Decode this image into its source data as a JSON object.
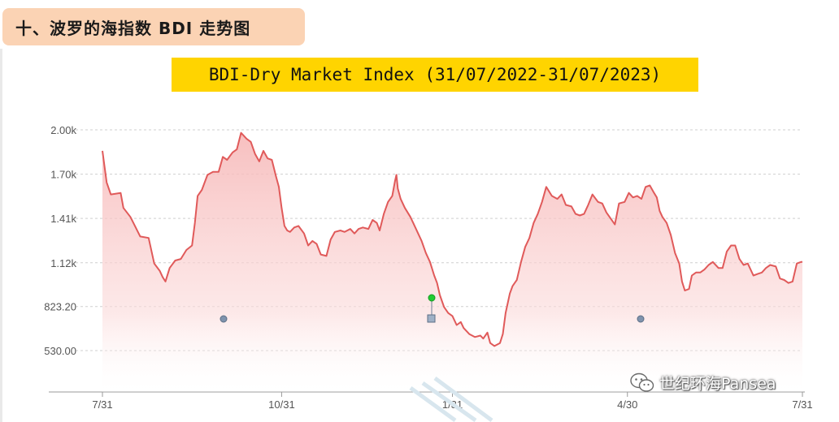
{
  "section": {
    "title": "十、波罗的海指数 BDI 走势图"
  },
  "chart_data": {
    "type": "area",
    "title": "BDI-Dry Market Index (31/07/2022-31/07/2023)",
    "xlabel": "",
    "ylabel": "",
    "x_ticks": [
      "7/31",
      "10/31",
      "1/31",
      "4/30",
      "7/31"
    ],
    "y_ticks": [
      "2.00k",
      "1.70k",
      "1.41k",
      "1.12k",
      "823.20",
      "530.00"
    ],
    "ylim": [
      530,
      2000
    ],
    "grid": true,
    "legend": "none",
    "line_color": "#e05a5a",
    "fill_color": "#f9c4c4",
    "series": [
      {
        "values": [
          [
            0,
            1860
          ],
          [
            3,
            1650
          ],
          [
            6,
            1570
          ],
          [
            13,
            1580
          ],
          [
            15,
            1480
          ],
          [
            20,
            1420
          ],
          [
            27,
            1290
          ],
          [
            33,
            1280
          ],
          [
            37,
            1110
          ],
          [
            41,
            1060
          ],
          [
            43,
            1020
          ],
          [
            45,
            990
          ],
          [
            48,
            1080
          ],
          [
            52,
            1130
          ],
          [
            56,
            1140
          ],
          [
            60,
            1200
          ],
          [
            64,
            1230
          ],
          [
            66,
            1380
          ],
          [
            68,
            1560
          ],
          [
            71,
            1600
          ],
          [
            75,
            1700
          ],
          [
            79,
            1720
          ],
          [
            83,
            1720
          ],
          [
            86,
            1820
          ],
          [
            89,
            1800
          ],
          [
            93,
            1850
          ],
          [
            96,
            1870
          ],
          [
            99,
            1980
          ],
          [
            103,
            1940
          ],
          [
            106,
            1920
          ],
          [
            109,
            1840
          ],
          [
            112,
            1790
          ],
          [
            115,
            1860
          ],
          [
            118,
            1810
          ],
          [
            121,
            1800
          ],
          [
            124,
            1690
          ],
          [
            126,
            1620
          ],
          [
            128,
            1480
          ],
          [
            130,
            1360
          ],
          [
            132,
            1330
          ],
          [
            134,
            1320
          ],
          [
            137,
            1350
          ],
          [
            140,
            1360
          ],
          [
            144,
            1310
          ],
          [
            147,
            1230
          ],
          [
            150,
            1260
          ],
          [
            153,
            1240
          ],
          [
            156,
            1170
          ],
          [
            160,
            1160
          ],
          [
            163,
            1270
          ],
          [
            166,
            1320
          ],
          [
            170,
            1330
          ],
          [
            173,
            1320
          ],
          [
            177,
            1340
          ],
          [
            180,
            1310
          ],
          [
            183,
            1340
          ],
          [
            186,
            1350
          ],
          [
            190,
            1340
          ],
          [
            193,
            1400
          ],
          [
            196,
            1380
          ],
          [
            198,
            1330
          ],
          [
            201,
            1440
          ],
          [
            204,
            1520
          ],
          [
            207,
            1560
          ],
          [
            209,
            1660
          ],
          [
            210,
            1700
          ],
          [
            211,
            1610
          ],
          [
            213,
            1540
          ],
          [
            216,
            1480
          ],
          [
            220,
            1420
          ],
          [
            224,
            1340
          ],
          [
            228,
            1260
          ],
          [
            231,
            1180
          ],
          [
            234,
            1120
          ],
          [
            237,
            1030
          ],
          [
            239,
            980
          ],
          [
            241,
            900
          ],
          [
            244,
            820
          ],
          [
            247,
            780
          ],
          [
            250,
            760
          ],
          [
            253,
            700
          ],
          [
            256,
            720
          ],
          [
            258,
            680
          ],
          [
            262,
            640
          ],
          [
            266,
            620
          ],
          [
            270,
            630
          ],
          [
            272,
            610
          ],
          [
            275,
            650
          ],
          [
            277,
            580
          ],
          [
            280,
            560
          ],
          [
            284,
            580
          ],
          [
            286,
            640
          ],
          [
            288,
            780
          ],
          [
            291,
            910
          ],
          [
            293,
            960
          ],
          [
            296,
            1000
          ],
          [
            299,
            1120
          ],
          [
            302,
            1220
          ],
          [
            305,
            1280
          ],
          [
            308,
            1380
          ],
          [
            311,
            1440
          ],
          [
            314,
            1520
          ],
          [
            317,
            1620
          ],
          [
            321,
            1560
          ],
          [
            325,
            1540
          ],
          [
            328,
            1570
          ],
          [
            331,
            1500
          ],
          [
            335,
            1490
          ],
          [
            338,
            1440
          ],
          [
            341,
            1430
          ],
          [
            344,
            1440
          ],
          [
            347,
            1500
          ],
          [
            350,
            1570
          ],
          [
            354,
            1520
          ],
          [
            357,
            1510
          ],
          [
            360,
            1450
          ],
          [
            363,
            1410
          ],
          [
            366,
            1370
          ],
          [
            369,
            1510
          ],
          [
            373,
            1520
          ],
          [
            376,
            1580
          ],
          [
            379,
            1550
          ],
          [
            382,
            1560
          ],
          [
            385,
            1540
          ],
          [
            388,
            1620
          ],
          [
            391,
            1630
          ],
          [
            394,
            1580
          ],
          [
            396,
            1550
          ],
          [
            398,
            1460
          ],
          [
            400,
            1420
          ],
          [
            403,
            1380
          ],
          [
            406,
            1300
          ],
          [
            409,
            1180
          ],
          [
            412,
            1110
          ],
          [
            414,
            990
          ],
          [
            416,
            930
          ],
          [
            419,
            940
          ],
          [
            421,
            1030
          ],
          [
            424,
            1050
          ],
          [
            427,
            1050
          ],
          [
            430,
            1070
          ],
          [
            433,
            1100
          ],
          [
            436,
            1120
          ],
          [
            440,
            1080
          ],
          [
            443,
            1080
          ],
          [
            446,
            1190
          ],
          [
            449,
            1230
          ],
          [
            452,
            1230
          ],
          [
            455,
            1140
          ],
          [
            458,
            1100
          ],
          [
            461,
            1110
          ],
          [
            465,
            1030
          ],
          [
            468,
            1040
          ],
          [
            471,
            1050
          ],
          [
            474,
            1080
          ],
          [
            477,
            1100
          ],
          [
            481,
            1090
          ],
          [
            484,
            1010
          ],
          [
            487,
            1000
          ],
          [
            490,
            980
          ],
          [
            493,
            990
          ],
          [
            496,
            1110
          ],
          [
            499,
            1120
          ],
          [
            500,
            1120
          ]
        ]
      }
    ]
  },
  "watermark": {
    "text": "世纪环海Pansea",
    "icon": "wechat-icon"
  }
}
